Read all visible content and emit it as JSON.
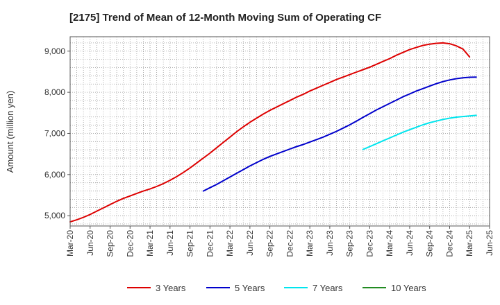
{
  "chart_data": {
    "type": "line",
    "title": "[2175]  Trend of Mean of 12-Month Moving Sum of Operating CF",
    "xlabel": "",
    "ylabel": "Amount (million yen)",
    "ylim": [
      4750,
      9350
    ],
    "yticks": [
      5000,
      6000,
      7000,
      8000,
      9000
    ],
    "ytick_labels": [
      "5,000",
      "6,000",
      "7,000",
      "8,000",
      "9,000"
    ],
    "x_start": "Mar-20",
    "x_end": "Jun-25",
    "x_tick_labels": [
      "Mar-20",
      "Jun-20",
      "Sep-20",
      "Dec-20",
      "Mar-21",
      "Jun-21",
      "Sep-21",
      "Dec-21",
      "Mar-22",
      "Jun-22",
      "Sep-22",
      "Dec-22",
      "Mar-23",
      "Jun-23",
      "Sep-23",
      "Dec-23",
      "Mar-24",
      "Jun-24",
      "Sep-24",
      "Dec-24",
      "Mar-25",
      "Jun-25"
    ],
    "grid": true,
    "legend_position": "bottom",
    "series": [
      {
        "name": "3 Years",
        "color": "#dd0000",
        "start": "Mar-20",
        "values": [
          4850,
          4900,
          4960,
          5030,
          5110,
          5190,
          5270,
          5350,
          5420,
          5480,
          5540,
          5600,
          5650,
          5710,
          5780,
          5860,
          5950,
          6050,
          6160,
          6280,
          6400,
          6520,
          6650,
          6780,
          6910,
          7040,
          7160,
          7270,
          7370,
          7470,
          7560,
          7640,
          7720,
          7800,
          7880,
          7950,
          8030,
          8100,
          8170,
          8240,
          8310,
          8370,
          8430,
          8490,
          8550,
          8610,
          8680,
          8750,
          8820,
          8900,
          8970,
          9040,
          9090,
          9140,
          9170,
          9190,
          9200,
          9180,
          9130,
          9050,
          8860
        ]
      },
      {
        "name": "5 Years",
        "color": "#0000cc",
        "start": "Nov-21",
        "values": [
          5600,
          5680,
          5760,
          5850,
          5940,
          6030,
          6120,
          6210,
          6290,
          6370,
          6440,
          6500,
          6560,
          6620,
          6680,
          6730,
          6790,
          6850,
          6910,
          6980,
          7050,
          7130,
          7210,
          7300,
          7390,
          7480,
          7570,
          7650,
          7730,
          7810,
          7890,
          7960,
          8030,
          8090,
          8150,
          8210,
          8260,
          8300,
          8330,
          8350,
          8365,
          8370
        ]
      },
      {
        "name": "7 Years",
        "color": "#00e5ee",
        "start": "Nov-23",
        "values": [
          6610,
          6680,
          6750,
          6820,
          6890,
          6960,
          7030,
          7090,
          7150,
          7210,
          7260,
          7300,
          7340,
          7370,
          7395,
          7410,
          7425,
          7440
        ]
      },
      {
        "name": "10 Years",
        "color": "#228b22",
        "start": "Mar-25",
        "values": []
      }
    ]
  }
}
